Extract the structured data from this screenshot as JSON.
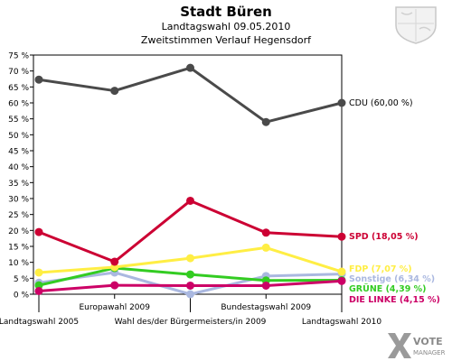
{
  "chart_data": {
    "type": "line",
    "title": "Stadt Büren",
    "subtitle": "Landtagswahl 09.05.2010",
    "subtitle2": "Zweitstimmen Verlauf Hegensdorf",
    "ylim": [
      0,
      75
    ],
    "y_ticks": [
      "0 %",
      "5 %",
      "10 %",
      "15 %",
      "20 %",
      "25 %",
      "30 %",
      "35 %",
      "40 %",
      "45 %",
      "50 %",
      "55 %",
      "60 %",
      "65 %",
      "70 %",
      "75 %"
    ],
    "categories": [
      "Landtagswahl 2005",
      "Europawahl 2009",
      "Wahl des/der Bürgermeisters/in 2009",
      "Bundestagswahl 2009",
      "Landtagswahl 2010"
    ],
    "series": [
      {
        "name": "CDU",
        "label": "CDU (60,00 %)",
        "color": "#4a4a4a",
        "values": [
          67.3,
          63.8,
          71.0,
          54.0,
          60.0
        ]
      },
      {
        "name": "SPD",
        "label": "SPD (18,05 %)",
        "color": "#cc0033",
        "values": [
          19.5,
          10.2,
          29.3,
          19.3,
          18.05
        ]
      },
      {
        "name": "FDP",
        "label": "FDP (7,07 %)",
        "color": "#ffee44",
        "values": [
          6.8,
          8.5,
          11.3,
          14.6,
          7.07
        ]
      },
      {
        "name": "Sonstige",
        "label": "Sonstige (6,34 %)",
        "color": "#aab8e0",
        "values": [
          3.6,
          6.8,
          0.0,
          5.7,
          6.34
        ]
      },
      {
        "name": "GRÜNE",
        "label": "GRÜNE (4,39 %)",
        "color": "#33cc22",
        "values": [
          2.8,
          8.2,
          6.2,
          4.3,
          4.39
        ]
      },
      {
        "name": "DIE LINKE",
        "label": "DIE LINKE (4,15 %)",
        "color": "#cc0066",
        "values": [
          1.0,
          2.8,
          2.7,
          2.7,
          4.15
        ]
      }
    ]
  },
  "branding": {
    "logo_line1": "VOTE",
    "logo_line2": "MANAGER"
  }
}
